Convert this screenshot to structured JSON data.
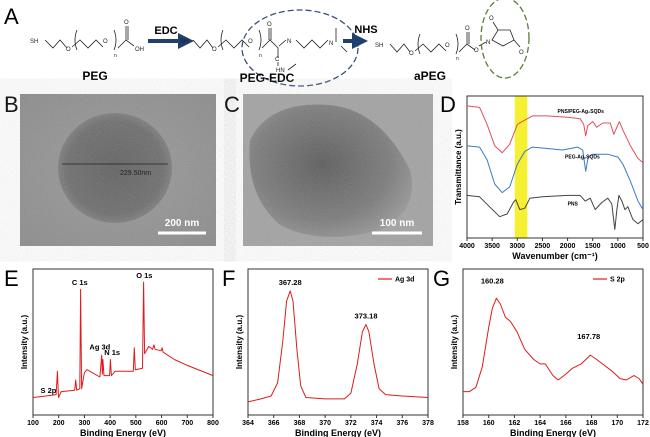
{
  "panels": {
    "A": "A",
    "B": "B",
    "C": "C",
    "D": "D",
    "E": "E",
    "F": "F",
    "G": "G"
  },
  "scheme": {
    "peg_label": "PEG",
    "peg_edc_label": "PEG-EDC",
    "apeg_label": "aPEG",
    "reagent1": "EDC",
    "reagent2": "NHS",
    "atoms": {
      "sh": "SH",
      "o": "O",
      "oh": "OH",
      "n": "n",
      "nitrogen": "N",
      "hn": "HN",
      "c": "C"
    },
    "colors": {
      "arrow": "#1f3f6e",
      "edc_circle": "#3b4f7a",
      "nhs_circle": "#5c7a3a"
    }
  },
  "tem": {
    "B": {
      "scale_bar": "200 nm",
      "measurement": "229.50nm"
    },
    "C": {
      "scale_bar": "100 nm"
    }
  },
  "chart_data": [
    {
      "panel": "D",
      "type": "line",
      "xlabel": "Wavenumber (cm⁻¹)",
      "ylabel": "Transmittance (a.u.)",
      "xlim": [
        4000,
        500
      ],
      "ylim": [
        0,
        100
      ],
      "xticks": [
        4000,
        3500,
        3000,
        2500,
        2000,
        1500,
        1000,
        500
      ],
      "highlight_band": {
        "from": 3050,
        "to": 2800,
        "color": "#f5f032"
      },
      "grid": false,
      "series": [
        {
          "name": "PNS/PEG-Ag₂SQDs",
          "color": "#e0505a",
          "label_at": [
            2200,
            88
          ],
          "points": [
            [
              4000,
              93
            ],
            [
              3750,
              92
            ],
            [
              3600,
              80
            ],
            [
              3450,
              65
            ],
            [
              3300,
              60
            ],
            [
              3150,
              66
            ],
            [
              3000,
              80
            ],
            [
              2850,
              83
            ],
            [
              2700,
              86
            ],
            [
              2400,
              86
            ],
            [
              2000,
              85
            ],
            [
              1750,
              84
            ],
            [
              1680,
              80
            ],
            [
              1640,
              72
            ],
            [
              1600,
              79
            ],
            [
              1500,
              82
            ],
            [
              1420,
              78
            ],
            [
              1300,
              81
            ],
            [
              1150,
              81
            ],
            [
              1080,
              73
            ],
            [
              1020,
              78
            ],
            [
              970,
              82
            ],
            [
              900,
              76
            ],
            [
              750,
              65
            ],
            [
              600,
              56
            ],
            [
              500,
              53
            ]
          ]
        },
        {
          "name": "PEG-Ag₂SQDs",
          "color": "#3c78c8",
          "label_at": [
            2050,
            56
          ],
          "points": [
            [
              4000,
              65
            ],
            [
              3750,
              64
            ],
            [
              3600,
              55
            ],
            [
              3450,
              38
            ],
            [
              3300,
              32
            ],
            [
              3150,
              36
            ],
            [
              3000,
              52
            ],
            [
              2850,
              61
            ],
            [
              2700,
              64
            ],
            [
              2400,
              63
            ],
            [
              2100,
              62
            ],
            [
              1800,
              64
            ],
            [
              1700,
              62
            ],
            [
              1640,
              47
            ],
            [
              1590,
              57
            ],
            [
              1500,
              59
            ],
            [
              1200,
              59
            ],
            [
              1000,
              57
            ],
            [
              900,
              52
            ],
            [
              750,
              40
            ],
            [
              600,
              26
            ],
            [
              500,
              20
            ]
          ]
        },
        {
          "name": "PNS",
          "color": "#444444",
          "label_at": [
            2000,
            23
          ],
          "points": [
            [
              4000,
              30
            ],
            [
              3750,
              29
            ],
            [
              3550,
              22
            ],
            [
              3350,
              15
            ],
            [
              3200,
              17
            ],
            [
              3080,
              25
            ],
            [
              3030,
              27
            ],
            [
              2950,
              20
            ],
            [
              2850,
              21
            ],
            [
              2750,
              28
            ],
            [
              2500,
              29
            ],
            [
              2000,
              30
            ],
            [
              1750,
              30
            ],
            [
              1650,
              26
            ],
            [
              1550,
              28
            ],
            [
              1450,
              20
            ],
            [
              1320,
              25
            ],
            [
              1200,
              28
            ],
            [
              1120,
              24
            ],
            [
              1060,
              6
            ],
            [
              1020,
              20
            ],
            [
              980,
              30
            ],
            [
              920,
              26
            ],
            [
              860,
              20
            ],
            [
              800,
              22
            ],
            [
              700,
              13
            ],
            [
              600,
              10
            ],
            [
              500,
              13
            ]
          ]
        }
      ]
    },
    {
      "panel": "E",
      "type": "line",
      "xlabel": "Binding Energy (eV)",
      "ylabel": "Intensity (a.u.)",
      "xlim": [
        100,
        800
      ],
      "ylim": [
        0,
        100
      ],
      "xticks": [
        100,
        200,
        300,
        400,
        500,
        600,
        700,
        800
      ],
      "grid": false,
      "series": [
        {
          "color": "#dd1c1c",
          "points": [
            [
              100,
              12
            ],
            [
              150,
              13
            ],
            [
              190,
              14
            ],
            [
              195,
              30
            ],
            [
              199,
              12
            ],
            [
              210,
              16
            ],
            [
              262,
              17
            ],
            [
              266,
              24
            ],
            [
              270,
              17
            ],
            [
              282,
              18
            ],
            [
              285,
              86
            ],
            [
              289,
              18
            ],
            [
              300,
              29
            ],
            [
              310,
              31
            ],
            [
              360,
              26
            ],
            [
              367,
              41
            ],
            [
              370,
              28
            ],
            [
              372,
              38
            ],
            [
              376,
              27
            ],
            [
              398,
              27
            ],
            [
              401,
              38
            ],
            [
              405,
              27
            ],
            [
              420,
              30
            ],
            [
              490,
              30
            ],
            [
              494,
              46
            ],
            [
              498,
              31
            ],
            [
              526,
              32
            ],
            [
              530,
              91
            ],
            [
              534,
              42
            ],
            [
              550,
              47
            ],
            [
              565,
              45
            ],
            [
              570,
              48
            ],
            [
              575,
              45
            ],
            [
              598,
              44
            ],
            [
              602,
              46
            ],
            [
              606,
              43
            ],
            [
              650,
              38
            ],
            [
              700,
              34
            ],
            [
              800,
              27
            ]
          ]
        }
      ],
      "annotations": [
        {
          "text": "C 1s",
          "at": [
            282,
            89
          ]
        },
        {
          "text": "O 1s",
          "at": [
            533,
            94
          ]
        },
        {
          "text": "Ag 3d",
          "at": [
            360,
            45
          ]
        },
        {
          "text": "N 1s",
          "at": [
            408,
            41
          ]
        },
        {
          "text": "S 2p",
          "at": [
            160,
            15
          ]
        }
      ]
    },
    {
      "panel": "F",
      "type": "line",
      "xlabel": "Binding Energy (eV)",
      "ylabel": "Intensity (a.u.)",
      "xlim": [
        364,
        378
      ],
      "ylim": [
        0,
        100
      ],
      "xticks": [
        364,
        366,
        368,
        370,
        372,
        374,
        376,
        378
      ],
      "legend": "top-right",
      "grid": false,
      "series": [
        {
          "name": "Ag 3d",
          "color": "#dd1c1c",
          "points": [
            [
              364,
              9
            ],
            [
              365,
              11
            ],
            [
              365.8,
              13
            ],
            [
              366.3,
              22
            ],
            [
              366.7,
              50
            ],
            [
              367.0,
              78
            ],
            [
              367.28,
              85
            ],
            [
              367.5,
              78
            ],
            [
              367.8,
              45
            ],
            [
              368.1,
              20
            ],
            [
              368.5,
              12
            ],
            [
              370,
              11
            ],
            [
              371.5,
              11
            ],
            [
              372,
              15
            ],
            [
              372.5,
              35
            ],
            [
              372.9,
              57
            ],
            [
              373.18,
              62
            ],
            [
              373.4,
              57
            ],
            [
              373.8,
              35
            ],
            [
              374.2,
              18
            ],
            [
              374.7,
              14
            ],
            [
              376,
              13
            ],
            [
              378,
              12
            ]
          ]
        }
      ],
      "annotations": [
        {
          "text": "367.28",
          "at": [
            367.28,
            89
          ]
        },
        {
          "text": "373.18",
          "at": [
            373.18,
            66
          ]
        }
      ]
    },
    {
      "panel": "G",
      "type": "line",
      "xlabel": "Binding Energy (eV)",
      "ylabel": "Intensity (a.u.)",
      "xlim": [
        158,
        172
      ],
      "ylim": [
        0,
        100
      ],
      "xticks": [
        158,
        160,
        162,
        164,
        166,
        168,
        170,
        172
      ],
      "legend": "top-right",
      "grid": false,
      "series": [
        {
          "name": "S 2p",
          "color": "#dd1c1c",
          "points": [
            [
              158,
              16
            ],
            [
              158.5,
              16
            ],
            [
              159,
              19
            ],
            [
              159.5,
              33
            ],
            [
              160,
              60
            ],
            [
              160.28,
              73
            ],
            [
              160.6,
              80
            ],
            [
              160.9,
              76
            ],
            [
              161.3,
              67
            ],
            [
              161.7,
              64
            ],
            [
              162.2,
              57
            ],
            [
              162.8,
              45
            ],
            [
              163.5,
              38
            ],
            [
              164,
              35
            ],
            [
              164.4,
              35
            ],
            [
              165,
              27
            ],
            [
              165.4,
              24
            ],
            [
              166,
              28
            ],
            [
              166.5,
              32
            ],
            [
              167.2,
              35
            ],
            [
              167.9,
              41
            ],
            [
              168.4,
              38
            ],
            [
              169,
              34
            ],
            [
              169.6,
              30
            ],
            [
              170.2,
              25
            ],
            [
              170.7,
              24
            ],
            [
              171.3,
              27
            ],
            [
              171.7,
              25
            ],
            [
              172,
              21
            ]
          ]
        }
      ],
      "annotations": [
        {
          "text": "160.28",
          "at": [
            160.28,
            90
          ]
        },
        {
          "text": "167.78",
          "at": [
            167.78,
            52
          ]
        }
      ]
    }
  ]
}
